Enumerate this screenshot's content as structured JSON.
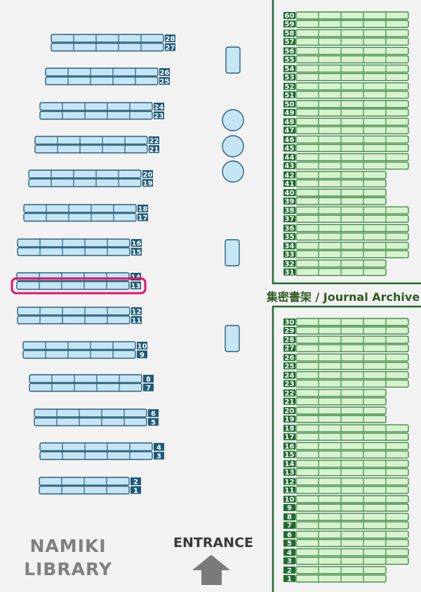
{
  "library_name": [
    "NAMIKI",
    "LIBRARY"
  ],
  "entrance_label": "ENTRANCE",
  "archive_title": "集密書架 / Journal Archive",
  "highlighted_shelf": "13",
  "colors": {
    "main_shelf_fill": "#c5e5f5",
    "main_shelf_stroke": "#2a5f7a",
    "main_label_bg": "#1d5a78",
    "archive_shelf_fill": "#d8f2d0",
    "archive_shelf_stroke": "#3f8a46",
    "archive_label_bg": "#1e6b2e",
    "archive_border": "#1e6b2e",
    "highlight": "#e8106a",
    "entrance_arrow": "#7a7a7a"
  },
  "main_shelves": [
    {
      "upper": "28",
      "lower": "27",
      "cells": 5
    },
    {
      "upper": "26",
      "lower": "25",
      "cells": 5
    },
    {
      "upper": "24",
      "lower": "23",
      "cells": 5
    },
    {
      "upper": "22",
      "lower": "21",
      "cells": 5
    },
    {
      "upper": "20",
      "lower": "19",
      "cells": 5
    },
    {
      "upper": "18",
      "lower": "17",
      "cells": 5
    },
    {
      "upper": "16",
      "lower": "15",
      "cells": 5
    },
    {
      "upper": "14",
      "lower": "13",
      "cells": 5
    },
    {
      "upper": "12",
      "lower": "11",
      "cells": 5
    },
    {
      "upper": "10",
      "lower": "9",
      "cells": 5
    },
    {
      "upper": "8",
      "lower": "7",
      "cells": 5
    },
    {
      "upper": "6",
      "lower": "5",
      "cells": 5
    },
    {
      "upper": "4",
      "lower": "3",
      "cells": 5
    },
    {
      "upper": "2",
      "lower": "1",
      "cells": 4
    }
  ],
  "archive_top": [
    {
      "upper": "60",
      "lower": "59",
      "cells": 5
    },
    {
      "upper": "58",
      "lower": "57",
      "cells": 5
    },
    {
      "upper": "56",
      "lower": "55",
      "cells": 5
    },
    {
      "upper": "54",
      "lower": "53",
      "cells": 5
    },
    {
      "upper": "52",
      "lower": "51",
      "cells": 5
    },
    {
      "upper": "50",
      "lower": "49",
      "cells": 5
    },
    {
      "upper": "48",
      "lower": "47",
      "cells": 5
    },
    {
      "upper": "46",
      "lower": "45",
      "cells": 5
    },
    {
      "upper": "44",
      "lower": "43",
      "cells": 5
    },
    {
      "upper": "42",
      "lower": "41",
      "cells": 4
    },
    {
      "upper": "40",
      "lower": "39",
      "cells": 4
    },
    {
      "upper": "38",
      "lower": "37",
      "cells": 5
    },
    {
      "upper": "36",
      "lower": "35",
      "cells": 5
    },
    {
      "upper": "34",
      "lower": "33",
      "cells": 5
    },
    {
      "upper": "32",
      "lower": "31",
      "cells": 4
    }
  ],
  "archive_bottom": [
    {
      "upper": "30",
      "lower": "29",
      "cells": 5
    },
    {
      "upper": "28",
      "lower": "27",
      "cells": 5
    },
    {
      "upper": "26",
      "lower": "25",
      "cells": 5
    },
    {
      "upper": "24",
      "lower": "23",
      "cells": 5
    },
    {
      "upper": "22",
      "lower": "21",
      "cells": 4
    },
    {
      "upper": "20",
      "lower": "19",
      "cells": 4
    },
    {
      "upper": "18",
      "lower": "17",
      "cells": 5
    },
    {
      "upper": "16",
      "lower": "15",
      "cells": 5
    },
    {
      "upper": "14",
      "lower": "13",
      "cells": 5
    },
    {
      "upper": "12",
      "lower": "11",
      "cells": 5
    },
    {
      "upper": "10",
      "lower": "9",
      "cells": 5
    },
    {
      "upper": "8",
      "lower": "7",
      "cells": 5
    },
    {
      "upper": "6",
      "lower": "5",
      "cells": 5
    },
    {
      "upper": "4",
      "lower": "3",
      "cells": 5
    },
    {
      "upper": "2",
      "lower": "1",
      "cells": 4
    }
  ],
  "furniture": [
    {
      "type": "table"
    },
    {
      "type": "round-table"
    },
    {
      "type": "round-table"
    },
    {
      "type": "round-table"
    },
    {
      "type": "table"
    },
    {
      "type": "table"
    }
  ]
}
